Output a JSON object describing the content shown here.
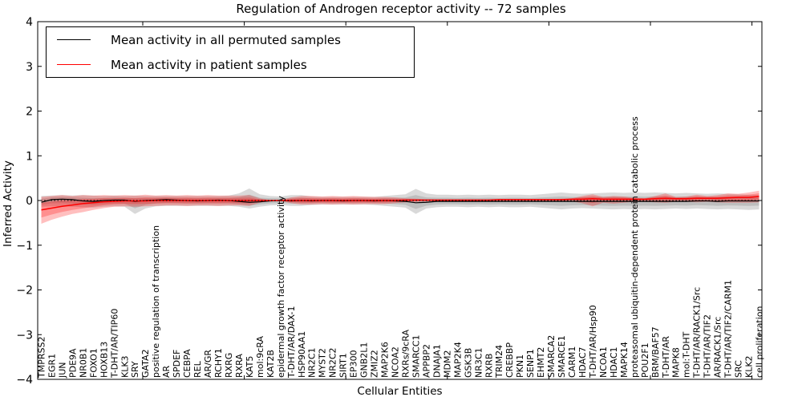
{
  "chart_data": {
    "type": "line",
    "title": "Regulation of Androgen receptor activity -- 72 samples",
    "xlabel": "Cellular Entities",
    "ylabel": "Inferred Activity",
    "ylim": [
      -4,
      4
    ],
    "yticks": [
      4,
      3,
      2,
      1,
      0,
      -1,
      -2,
      -3,
      -4
    ],
    "grid": false,
    "legend_position": "upper left",
    "zero_line": "dotted",
    "categories": [
      "TMPRSS2",
      "EGR1",
      "JUN",
      "PDE9A",
      "NR0B1",
      "FOXO1",
      "HOXB13",
      "T-DHT/AR/TIP60",
      "KLK3",
      "SRY",
      "GATA2",
      "positive regulation of transcription",
      "AR",
      "SPDEF",
      "CEBPA",
      "REL",
      "AR/GR",
      "RCHY1",
      "RXRG",
      "RXRA",
      "KAT5",
      "mol:9cRA",
      "KAT2B",
      "epidermal growth factor receptor activity",
      "T-DHT/AR/DAX-1",
      "HSP90AA1",
      "NR2C1",
      "MYST2",
      "NR2C2",
      "SIRT1",
      "EP300",
      "GNB2L1",
      "ZMIZ2",
      "MAP2K6",
      "NCOA2",
      "RXRs/9cRA",
      "SMARCC1",
      "APPBP2",
      "DNAJA1",
      "MDM2",
      "MAP2K4",
      "GSK3B",
      "NR3C1",
      "RXRB",
      "TRIM24",
      "CREBBP",
      "PKN1",
      "SENP1",
      "EHMT2",
      "SMARCA2",
      "SMARCE1",
      "CARM1",
      "HDAC7",
      "T-DHT/AR/Hsp90",
      "NCOA1",
      "HDAC1",
      "MAPK14",
      "proteasomal ubiquitin-dependent protein catabolic process",
      "POU2F1",
      "BRM/BAF57",
      "T-DHT/AR",
      "MAPK8",
      "mol:T-DHT",
      "T-DHT/AR/RACK1/Src",
      "T-DHT/AR/TIF2",
      "AR/RACK1/Src",
      "T-DHT/AR/TIF2/CARM1",
      "SRC",
      "KLK2",
      "cell proliferation"
    ],
    "series": [
      {
        "name": "Mean activity in all permuted samples",
        "color": "#000000",
        "line_width": 1.2,
        "band_color": "rgba(128,128,128,0.30)",
        "values": [
          -0.04,
          0.02,
          0.03,
          0.02,
          -0.01,
          -0.02,
          0.0,
          0.01,
          0.01,
          -0.02,
          0.0,
          0.01,
          0.02,
          0.01,
          0.0,
          -0.01,
          0.0,
          0.01,
          0.0,
          -0.02,
          -0.04,
          -0.03,
          -0.01,
          0.0,
          -0.01,
          0.0,
          -0.01,
          0.0,
          0.0,
          -0.01,
          0.0,
          0.0,
          -0.01,
          0.0,
          -0.01,
          -0.02,
          -0.05,
          -0.04,
          -0.02,
          -0.02,
          -0.02,
          -0.02,
          -0.02,
          -0.02,
          -0.02,
          -0.02,
          -0.02,
          -0.02,
          -0.02,
          -0.02,
          -0.02,
          -0.02,
          -0.02,
          -0.02,
          -0.02,
          -0.02,
          -0.02,
          -0.02,
          -0.02,
          -0.02,
          -0.02,
          -0.02,
          -0.02,
          -0.01,
          -0.01,
          -0.02,
          -0.01,
          -0.01,
          -0.01,
          -0.01
        ],
        "band_upper": [
          0.1,
          0.11,
          0.12,
          0.11,
          0.12,
          0.11,
          0.1,
          0.11,
          0.1,
          0.11,
          0.1,
          0.1,
          0.1,
          0.1,
          0.1,
          0.1,
          0.1,
          0.1,
          0.11,
          0.16,
          0.27,
          0.14,
          0.1,
          0.09,
          0.12,
          0.12,
          0.09,
          0.08,
          0.08,
          0.08,
          0.08,
          0.08,
          0.08,
          0.1,
          0.12,
          0.14,
          0.26,
          0.16,
          0.13,
          0.13,
          0.12,
          0.13,
          0.12,
          0.13,
          0.12,
          0.13,
          0.13,
          0.12,
          0.14,
          0.16,
          0.18,
          0.16,
          0.15,
          0.16,
          0.17,
          0.18,
          0.17,
          0.18,
          0.17,
          0.18,
          0.17,
          0.16,
          0.17,
          0.16,
          0.15,
          0.16,
          0.15,
          0.14,
          0.13,
          0.12
        ],
        "band_lower": [
          -0.14,
          -0.13,
          -0.13,
          -0.14,
          -0.15,
          -0.16,
          -0.14,
          -0.13,
          -0.14,
          -0.3,
          -0.18,
          -0.13,
          -0.12,
          -0.12,
          -0.12,
          -0.12,
          -0.12,
          -0.12,
          -0.12,
          -0.14,
          -0.18,
          -0.14,
          -0.11,
          -0.1,
          -0.12,
          -0.12,
          -0.1,
          -0.09,
          -0.09,
          -0.09,
          -0.09,
          -0.09,
          -0.1,
          -0.12,
          -0.14,
          -0.16,
          -0.3,
          -0.18,
          -0.15,
          -0.14,
          -0.14,
          -0.15,
          -0.14,
          -0.15,
          -0.14,
          -0.15,
          -0.15,
          -0.14,
          -0.16,
          -0.18,
          -0.2,
          -0.18,
          -0.17,
          -0.18,
          -0.19,
          -0.2,
          -0.19,
          -0.2,
          -0.19,
          -0.2,
          -0.19,
          -0.18,
          -0.19,
          -0.18,
          -0.19,
          -0.2,
          -0.19,
          -0.2,
          -0.21,
          -0.2
        ]
      },
      {
        "name": "Mean activity in patient samples",
        "color": "#ff0000",
        "line_width": 1.5,
        "band_color": "rgba(255,0,0,0.25)",
        "values": [
          -0.21,
          -0.17,
          -0.13,
          -0.1,
          -0.07,
          -0.05,
          -0.03,
          -0.02,
          -0.01,
          -0.01,
          -0.01,
          0.0,
          0.0,
          0.0,
          0.0,
          0.0,
          0.0,
          0.0,
          0.0,
          0.0,
          0.0,
          0.0,
          0.0,
          0.0,
          0.0,
          0.0,
          0.0,
          0.0,
          0.0,
          0.0,
          0.0,
          0.0,
          0.0,
          0.0,
          0.0,
          0.01,
          0.01,
          0.01,
          0.01,
          0.01,
          0.01,
          0.01,
          0.01,
          0.01,
          0.02,
          0.02,
          0.02,
          0.02,
          0.02,
          0.02,
          0.02,
          0.03,
          0.03,
          0.04,
          0.03,
          0.03,
          0.03,
          0.03,
          0.03,
          0.04,
          0.05,
          0.04,
          0.04,
          0.05,
          0.05,
          0.05,
          0.06,
          0.07,
          0.07,
          0.09
        ],
        "band_upper": [
          0.08,
          0.1,
          0.12,
          0.1,
          0.12,
          0.11,
          0.12,
          0.11,
          0.12,
          0.11,
          0.13,
          0.11,
          0.12,
          0.11,
          0.12,
          0.11,
          0.12,
          0.11,
          0.11,
          0.11,
          0.12,
          0.05,
          0.01,
          0.01,
          0.07,
          0.1,
          0.1,
          0.09,
          0.1,
          0.09,
          0.1,
          0.09,
          0.08,
          0.08,
          0.07,
          0.05,
          0.04,
          0.03,
          0.03,
          0.03,
          0.03,
          0.03,
          0.03,
          0.03,
          0.03,
          0.03,
          0.03,
          0.03,
          0.03,
          0.03,
          0.04,
          0.05,
          0.1,
          0.14,
          0.08,
          0.1,
          0.09,
          0.06,
          0.05,
          0.1,
          0.16,
          0.08,
          0.09,
          0.13,
          0.1,
          0.12,
          0.16,
          0.15,
          0.18,
          0.22
        ],
        "band_lower": [
          -0.52,
          -0.43,
          -0.36,
          -0.3,
          -0.26,
          -0.21,
          -0.17,
          -0.14,
          -0.13,
          -0.14,
          -0.13,
          -0.12,
          -0.11,
          -0.11,
          -0.12,
          -0.11,
          -0.11,
          -0.12,
          -0.11,
          -0.11,
          -0.12,
          -0.05,
          -0.01,
          -0.01,
          -0.06,
          -0.09,
          -0.09,
          -0.08,
          -0.09,
          -0.08,
          -0.09,
          -0.08,
          -0.08,
          -0.08,
          -0.06,
          -0.04,
          -0.03,
          -0.02,
          -0.02,
          -0.02,
          -0.02,
          -0.02,
          -0.02,
          -0.02,
          -0.02,
          -0.02,
          -0.02,
          -0.02,
          -0.02,
          -0.02,
          -0.02,
          -0.02,
          -0.06,
          -0.13,
          -0.05,
          -0.07,
          -0.05,
          -0.03,
          -0.03,
          -0.04,
          -0.05,
          -0.03,
          -0.03,
          -0.04,
          -0.03,
          -0.04,
          -0.05,
          -0.05,
          -0.05,
          -0.04
        ]
      }
    ]
  }
}
